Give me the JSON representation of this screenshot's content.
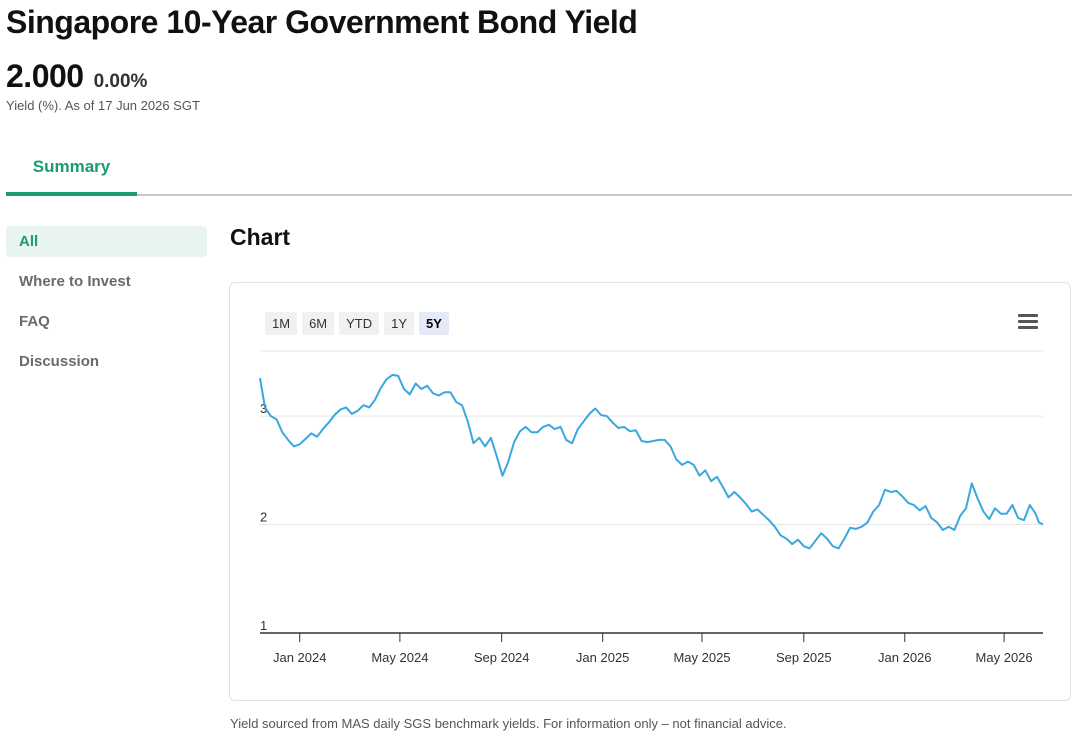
{
  "page": {
    "title": "Singapore 10-Year Government Bond Yield",
    "value": "2.000",
    "change": "0.00%",
    "yield_note": "Yield (%). As of 17 Jun 2026 SGT",
    "source_note": "Yield sourced from MAS daily SGS benchmark yields. For information only – not financial advice."
  },
  "tabs": [
    {
      "label": "Summary",
      "active": true
    }
  ],
  "sidenav": {
    "items": [
      {
        "label": "All",
        "active": true
      },
      {
        "label": "Where to Invest",
        "active": false
      },
      {
        "label": "FAQ",
        "active": false
      },
      {
        "label": "Discussion",
        "active": false
      }
    ]
  },
  "chart_section": {
    "title": "Chart",
    "range_buttons": [
      {
        "label": "1M",
        "active": false
      },
      {
        "label": "6M",
        "active": false
      },
      {
        "label": "YTD",
        "active": false
      },
      {
        "label": "1Y",
        "active": false
      },
      {
        "label": "5Y",
        "active": true
      }
    ],
    "menu_icon": "hamburger-menu-icon"
  },
  "colors": {
    "accent": "#1a9b72",
    "line": "#3aa7e0",
    "active_range_bg": "#e6e9f8"
  },
  "chart_data": {
    "type": "line",
    "title": "",
    "xlabel": "",
    "ylabel": "",
    "ylim": [
      1,
      3.6
    ],
    "xlim": [
      "2023-11-14",
      "2026-06-17"
    ],
    "yticks": [
      1,
      2,
      3
    ],
    "xticks": [
      {
        "date": "2024-01-01",
        "label": "Jan 2024"
      },
      {
        "date": "2024-05-01",
        "label": "May 2024"
      },
      {
        "date": "2024-09-01",
        "label": "Sep 2024"
      },
      {
        "date": "2025-01-01",
        "label": "Jan 2025"
      },
      {
        "date": "2025-05-01",
        "label": "May 2025"
      },
      {
        "date": "2025-09-01",
        "label": "Sep 2025"
      },
      {
        "date": "2026-01-01",
        "label": "Jan 2026"
      },
      {
        "date": "2026-05-01",
        "label": "May 2026"
      }
    ],
    "grid": true,
    "series": [
      {
        "points": [
          [
            "2023-11-14",
            3.35
          ],
          [
            "2023-11-20",
            3.08
          ],
          [
            "2023-11-27",
            3.0
          ],
          [
            "2023-12-04",
            2.97
          ],
          [
            "2023-12-11",
            2.85
          ],
          [
            "2023-12-18",
            2.78
          ],
          [
            "2023-12-25",
            2.72
          ],
          [
            "2024-01-01",
            2.74
          ],
          [
            "2024-01-08",
            2.79
          ],
          [
            "2024-01-15",
            2.84
          ],
          [
            "2024-01-22",
            2.81
          ],
          [
            "2024-01-29",
            2.88
          ],
          [
            "2024-02-05",
            2.94
          ],
          [
            "2024-02-12",
            3.01
          ],
          [
            "2024-02-19",
            3.06
          ],
          [
            "2024-02-26",
            3.08
          ],
          [
            "2024-03-04",
            3.02
          ],
          [
            "2024-03-11",
            3.05
          ],
          [
            "2024-03-18",
            3.1
          ],
          [
            "2024-03-25",
            3.08
          ],
          [
            "2024-04-01",
            3.15
          ],
          [
            "2024-04-08",
            3.26
          ],
          [
            "2024-04-15",
            3.34
          ],
          [
            "2024-04-22",
            3.38
          ],
          [
            "2024-04-29",
            3.37
          ],
          [
            "2024-05-06",
            3.25
          ],
          [
            "2024-05-13",
            3.2
          ],
          [
            "2024-05-20",
            3.3
          ],
          [
            "2024-05-27",
            3.25
          ],
          [
            "2024-06-03",
            3.28
          ],
          [
            "2024-06-10",
            3.21
          ],
          [
            "2024-06-17",
            3.19
          ],
          [
            "2024-06-24",
            3.22
          ],
          [
            "2024-07-01",
            3.22
          ],
          [
            "2024-07-08",
            3.13
          ],
          [
            "2024-07-15",
            3.1
          ],
          [
            "2024-07-22",
            2.95
          ],
          [
            "2024-07-29",
            2.75
          ],
          [
            "2024-08-05",
            2.8
          ],
          [
            "2024-08-12",
            2.72
          ],
          [
            "2024-08-19",
            2.8
          ],
          [
            "2024-08-26",
            2.63
          ],
          [
            "2024-09-02",
            2.45
          ],
          [
            "2024-09-09",
            2.58
          ],
          [
            "2024-09-16",
            2.76
          ],
          [
            "2024-09-23",
            2.86
          ],
          [
            "2024-09-30",
            2.9
          ],
          [
            "2024-10-07",
            2.85
          ],
          [
            "2024-10-14",
            2.85
          ],
          [
            "2024-10-21",
            2.9
          ],
          [
            "2024-10-28",
            2.92
          ],
          [
            "2024-11-04",
            2.88
          ],
          [
            "2024-11-11",
            2.9
          ],
          [
            "2024-11-18",
            2.78
          ],
          [
            "2024-11-25",
            2.75
          ],
          [
            "2024-12-02",
            2.88
          ],
          [
            "2024-12-09",
            2.95
          ],
          [
            "2024-12-16",
            3.02
          ],
          [
            "2024-12-23",
            3.07
          ],
          [
            "2024-12-30",
            3.01
          ],
          [
            "2025-01-06",
            3.0
          ],
          [
            "2025-01-13",
            2.94
          ],
          [
            "2025-01-20",
            2.89
          ],
          [
            "2025-01-27",
            2.9
          ],
          [
            "2025-02-03",
            2.86
          ],
          [
            "2025-02-10",
            2.87
          ],
          [
            "2025-02-17",
            2.77
          ],
          [
            "2025-02-24",
            2.76
          ],
          [
            "2025-03-03",
            2.77
          ],
          [
            "2025-03-10",
            2.78
          ],
          [
            "2025-03-17",
            2.78
          ],
          [
            "2025-03-24",
            2.72
          ],
          [
            "2025-03-31",
            2.6
          ],
          [
            "2025-04-07",
            2.55
          ],
          [
            "2025-04-14",
            2.58
          ],
          [
            "2025-04-21",
            2.55
          ],
          [
            "2025-04-28",
            2.45
          ],
          [
            "2025-05-05",
            2.5
          ],
          [
            "2025-05-12",
            2.4
          ],
          [
            "2025-05-19",
            2.44
          ],
          [
            "2025-05-26",
            2.35
          ],
          [
            "2025-06-02",
            2.25
          ],
          [
            "2025-06-09",
            2.3
          ],
          [
            "2025-06-16",
            2.25
          ],
          [
            "2025-06-23",
            2.19
          ],
          [
            "2025-06-30",
            2.12
          ],
          [
            "2025-07-07",
            2.14
          ],
          [
            "2025-07-14",
            2.09
          ],
          [
            "2025-07-21",
            2.04
          ],
          [
            "2025-07-28",
            1.98
          ],
          [
            "2025-08-04",
            1.9
          ],
          [
            "2025-08-11",
            1.87
          ],
          [
            "2025-08-18",
            1.82
          ],
          [
            "2025-08-25",
            1.86
          ],
          [
            "2025-09-01",
            1.8
          ],
          [
            "2025-09-08",
            1.78
          ],
          [
            "2025-09-15",
            1.85
          ],
          [
            "2025-09-22",
            1.92
          ],
          [
            "2025-09-29",
            1.87
          ],
          [
            "2025-10-06",
            1.8
          ],
          [
            "2025-10-13",
            1.78
          ],
          [
            "2025-10-20",
            1.87
          ],
          [
            "2025-10-27",
            1.97
          ],
          [
            "2025-11-03",
            1.96
          ],
          [
            "2025-11-10",
            1.98
          ],
          [
            "2025-11-17",
            2.02
          ],
          [
            "2025-11-24",
            2.12
          ],
          [
            "2025-12-01",
            2.18
          ],
          [
            "2025-12-08",
            2.32
          ],
          [
            "2025-12-15",
            2.3
          ],
          [
            "2025-12-22",
            2.31
          ],
          [
            "2025-12-29",
            2.26
          ],
          [
            "2026-01-05",
            2.2
          ],
          [
            "2026-01-12",
            2.18
          ],
          [
            "2026-01-19",
            2.13
          ],
          [
            "2026-01-26",
            2.17
          ],
          [
            "2026-02-02",
            2.06
          ],
          [
            "2026-02-09",
            2.02
          ],
          [
            "2026-02-16",
            1.95
          ],
          [
            "2026-02-23",
            1.98
          ],
          [
            "2026-03-02",
            1.95
          ],
          [
            "2026-03-09",
            2.08
          ],
          [
            "2026-03-16",
            2.15
          ],
          [
            "2026-03-23",
            2.38
          ],
          [
            "2026-03-30",
            2.24
          ],
          [
            "2026-04-06",
            2.12
          ],
          [
            "2026-04-13",
            2.05
          ],
          [
            "2026-04-20",
            2.15
          ],
          [
            "2026-04-27",
            2.1
          ],
          [
            "2026-05-04",
            2.1
          ],
          [
            "2026-05-11",
            2.18
          ],
          [
            "2026-05-18",
            2.06
          ],
          [
            "2026-05-25",
            2.04
          ],
          [
            "2026-06-01",
            2.18
          ],
          [
            "2026-06-08",
            2.1
          ],
          [
            "2026-06-12",
            2.02
          ],
          [
            "2026-06-17",
            2.0
          ]
        ]
      }
    ]
  }
}
